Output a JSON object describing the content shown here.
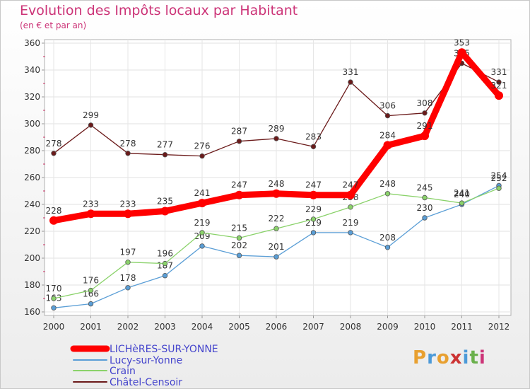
{
  "header": {
    "title": "Evolution des Impôts locaux par Habitant",
    "subtitle": "(en € et par an)"
  },
  "logo": {
    "letters": [
      "P",
      "r",
      "o",
      "x",
      "i",
      "t",
      "i"
    ],
    "colors": [
      "#e8a030",
      "#4c9ad8",
      "#e8a030",
      "#cc3333",
      "#4c9ad8",
      "#6ab04c",
      "#cc3377"
    ]
  },
  "chart_data": {
    "type": "line",
    "title": "Evolution des Impôts locaux par Habitant",
    "subtitle": "(en € et par an)",
    "xlabel": "",
    "ylabel": "",
    "x": [
      "2000",
      "2001",
      "2002",
      "2003",
      "2004",
      "2005",
      "2006",
      "2007",
      "2008",
      "2009",
      "2010",
      "2011",
      "2012"
    ],
    "ylim": [
      160,
      360
    ],
    "yticks": [
      "160",
      "180",
      "200",
      "220",
      "240",
      "260",
      "280",
      "300",
      "320",
      "340",
      "360"
    ],
    "grid": true,
    "legend_position": "bottom-left",
    "series": [
      {
        "name": "Châtel-Censoir",
        "color": "#6b1a1a",
        "values": [
          278,
          299,
          278,
          277,
          276,
          287,
          289,
          283,
          331,
          306,
          308,
          345,
          331
        ],
        "labels": [
          "278",
          "299",
          "278",
          "277",
          "276",
          "287",
          "289",
          "283",
          "331",
          "306",
          "308",
          "345",
          "331"
        ]
      },
      {
        "name": "Lucy-sur-Yonne",
        "color": "#5a9ed6",
        "values": [
          163,
          166,
          178,
          187,
          209,
          202,
          201,
          219,
          219,
          208,
          230,
          240,
          254
        ],
        "labels": [
          "163",
          "166",
          "178",
          "187",
          "209",
          "202",
          "201",
          "219",
          "219",
          "208",
          "230",
          "240",
          "254"
        ]
      },
      {
        "name": "Crain",
        "color": "#8ad26a",
        "values": [
          170,
          176,
          197,
          196,
          219,
          215,
          222,
          229,
          238,
          248,
          245,
          241,
          252
        ],
        "labels": [
          "170",
          "176",
          "197",
          "196",
          "219",
          "215",
          "222",
          "229",
          "238",
          "248",
          "245",
          "241",
          "252"
        ]
      },
      {
        "name": "LICHèRES-SUR-YONNE",
        "color": "#ff0000",
        "values": [
          228,
          233,
          233,
          235,
          241,
          247,
          248,
          247,
          247,
          284,
          291,
          353,
          321
        ],
        "labels": [
          "228",
          "233",
          "233",
          "235",
          "241",
          "247",
          "248",
          "247",
          "247",
          "284",
          "291",
          "353",
          "321"
        ]
      }
    ],
    "legend": [
      {
        "name": "LICHèRES-SUR-YONNE",
        "color": "#ff0000",
        "text_color": "#4444cc"
      },
      {
        "name": "Lucy-sur-Yonne",
        "color": "#5a9ed6",
        "text_color": "#4444cc"
      },
      {
        "name": "Crain",
        "color": "#8ad26a",
        "text_color": "#4444cc"
      },
      {
        "name": "Châtel-Censoir",
        "color": "#6b1a1a",
        "text_color": "#4444cc"
      }
    ]
  }
}
